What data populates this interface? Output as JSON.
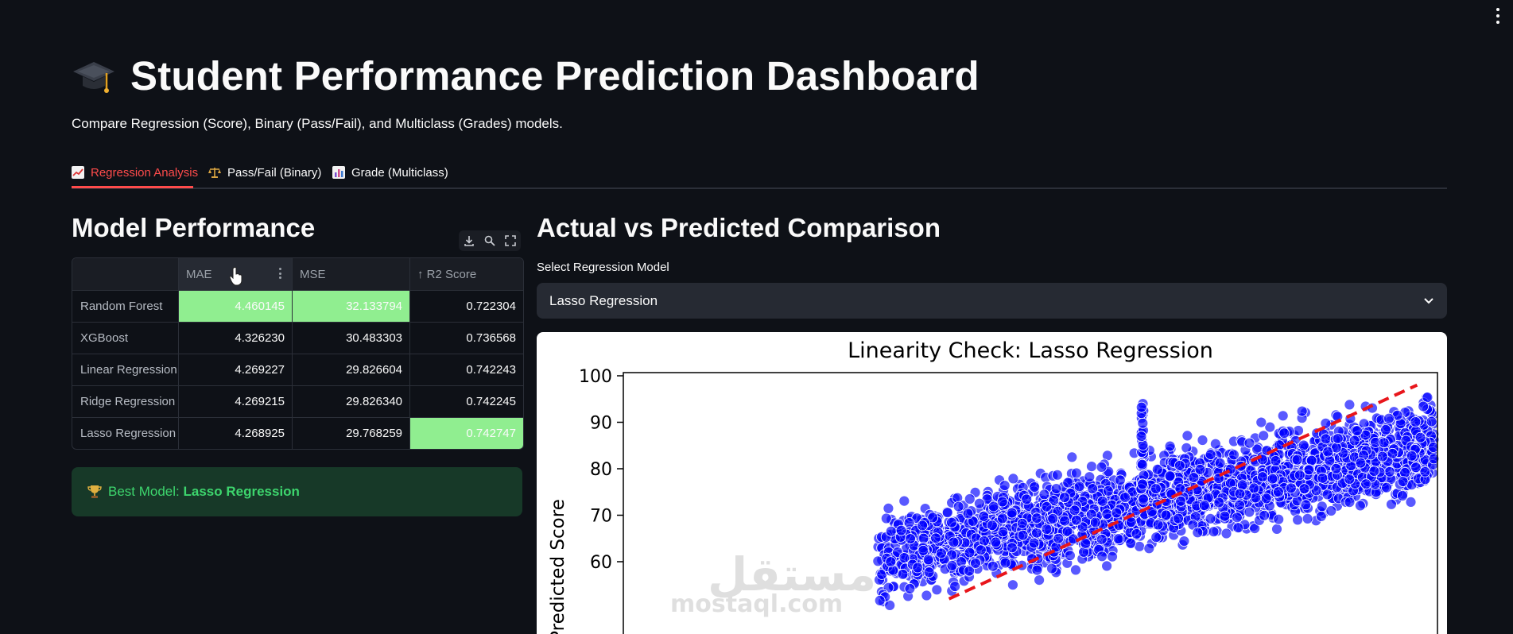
{
  "app": {
    "title": "Student Performance Prediction Dashboard",
    "subtitle": "Compare Regression (Score), Binary (Pass/Fail), and Multiclass (Grades) models."
  },
  "tabs": [
    {
      "label": "Regression Analysis",
      "icon": "chart-increasing-icon",
      "active": true
    },
    {
      "label": "Pass/Fail (Binary)",
      "icon": "balance-scale-icon",
      "active": false
    },
    {
      "label": "Grade (Multiclass)",
      "icon": "bar-chart-icon",
      "active": false
    }
  ],
  "model_performance": {
    "heading": "Model Performance",
    "toolbar": [
      "download-icon",
      "search-icon",
      "fullscreen-icon"
    ],
    "columns": [
      "MAE",
      "MSE",
      "↑ R2 Score"
    ],
    "rows": [
      {
        "model": "Random Forest",
        "mae": "4.460145",
        "mse": "32.133794",
        "r2": "0.722304"
      },
      {
        "model": "XGBoost",
        "mae": "4.326230",
        "mse": "30.483303",
        "r2": "0.736568"
      },
      {
        "model": "Linear Regression",
        "mae": "4.269227",
        "mse": "29.826604",
        "r2": "0.742243"
      },
      {
        "model": "Ridge Regression",
        "mae": "4.269215",
        "mse": "29.826340",
        "r2": "0.742245"
      },
      {
        "model": "Lasso Regression",
        "mae": "4.268925",
        "mse": "29.768259",
        "r2": "0.742747"
      }
    ],
    "highlight_color": "#90ee90",
    "best_prefix": "Best Model: ",
    "best_model": "Lasso Regression"
  },
  "comparison": {
    "heading": "Actual vs Predicted Comparison",
    "select_label": "Select Regression Model",
    "selected": "Lasso Regression"
  },
  "chart_data": {
    "type": "scatter",
    "title": "Linearity Check: Lasso Regression",
    "ylabel": "Predicted Score",
    "yticks": [
      60,
      70,
      80,
      90,
      100
    ],
    "ylim_visible": [
      55,
      102
    ],
    "point_color": "#0000ff",
    "reference_line_color": "#e8161b",
    "reference_line": {
      "from": [
        52,
        52
      ],
      "to": [
        98,
        98
      ]
    },
    "outlier_column_x": 71,
    "cloud": {
      "x_range": [
        40,
        100
      ],
      "approx_slope": 0.45,
      "center_at_x70": 72
    }
  },
  "watermark": {
    "text_ar": "مستقل",
    "text_en": "mostaql.com"
  }
}
